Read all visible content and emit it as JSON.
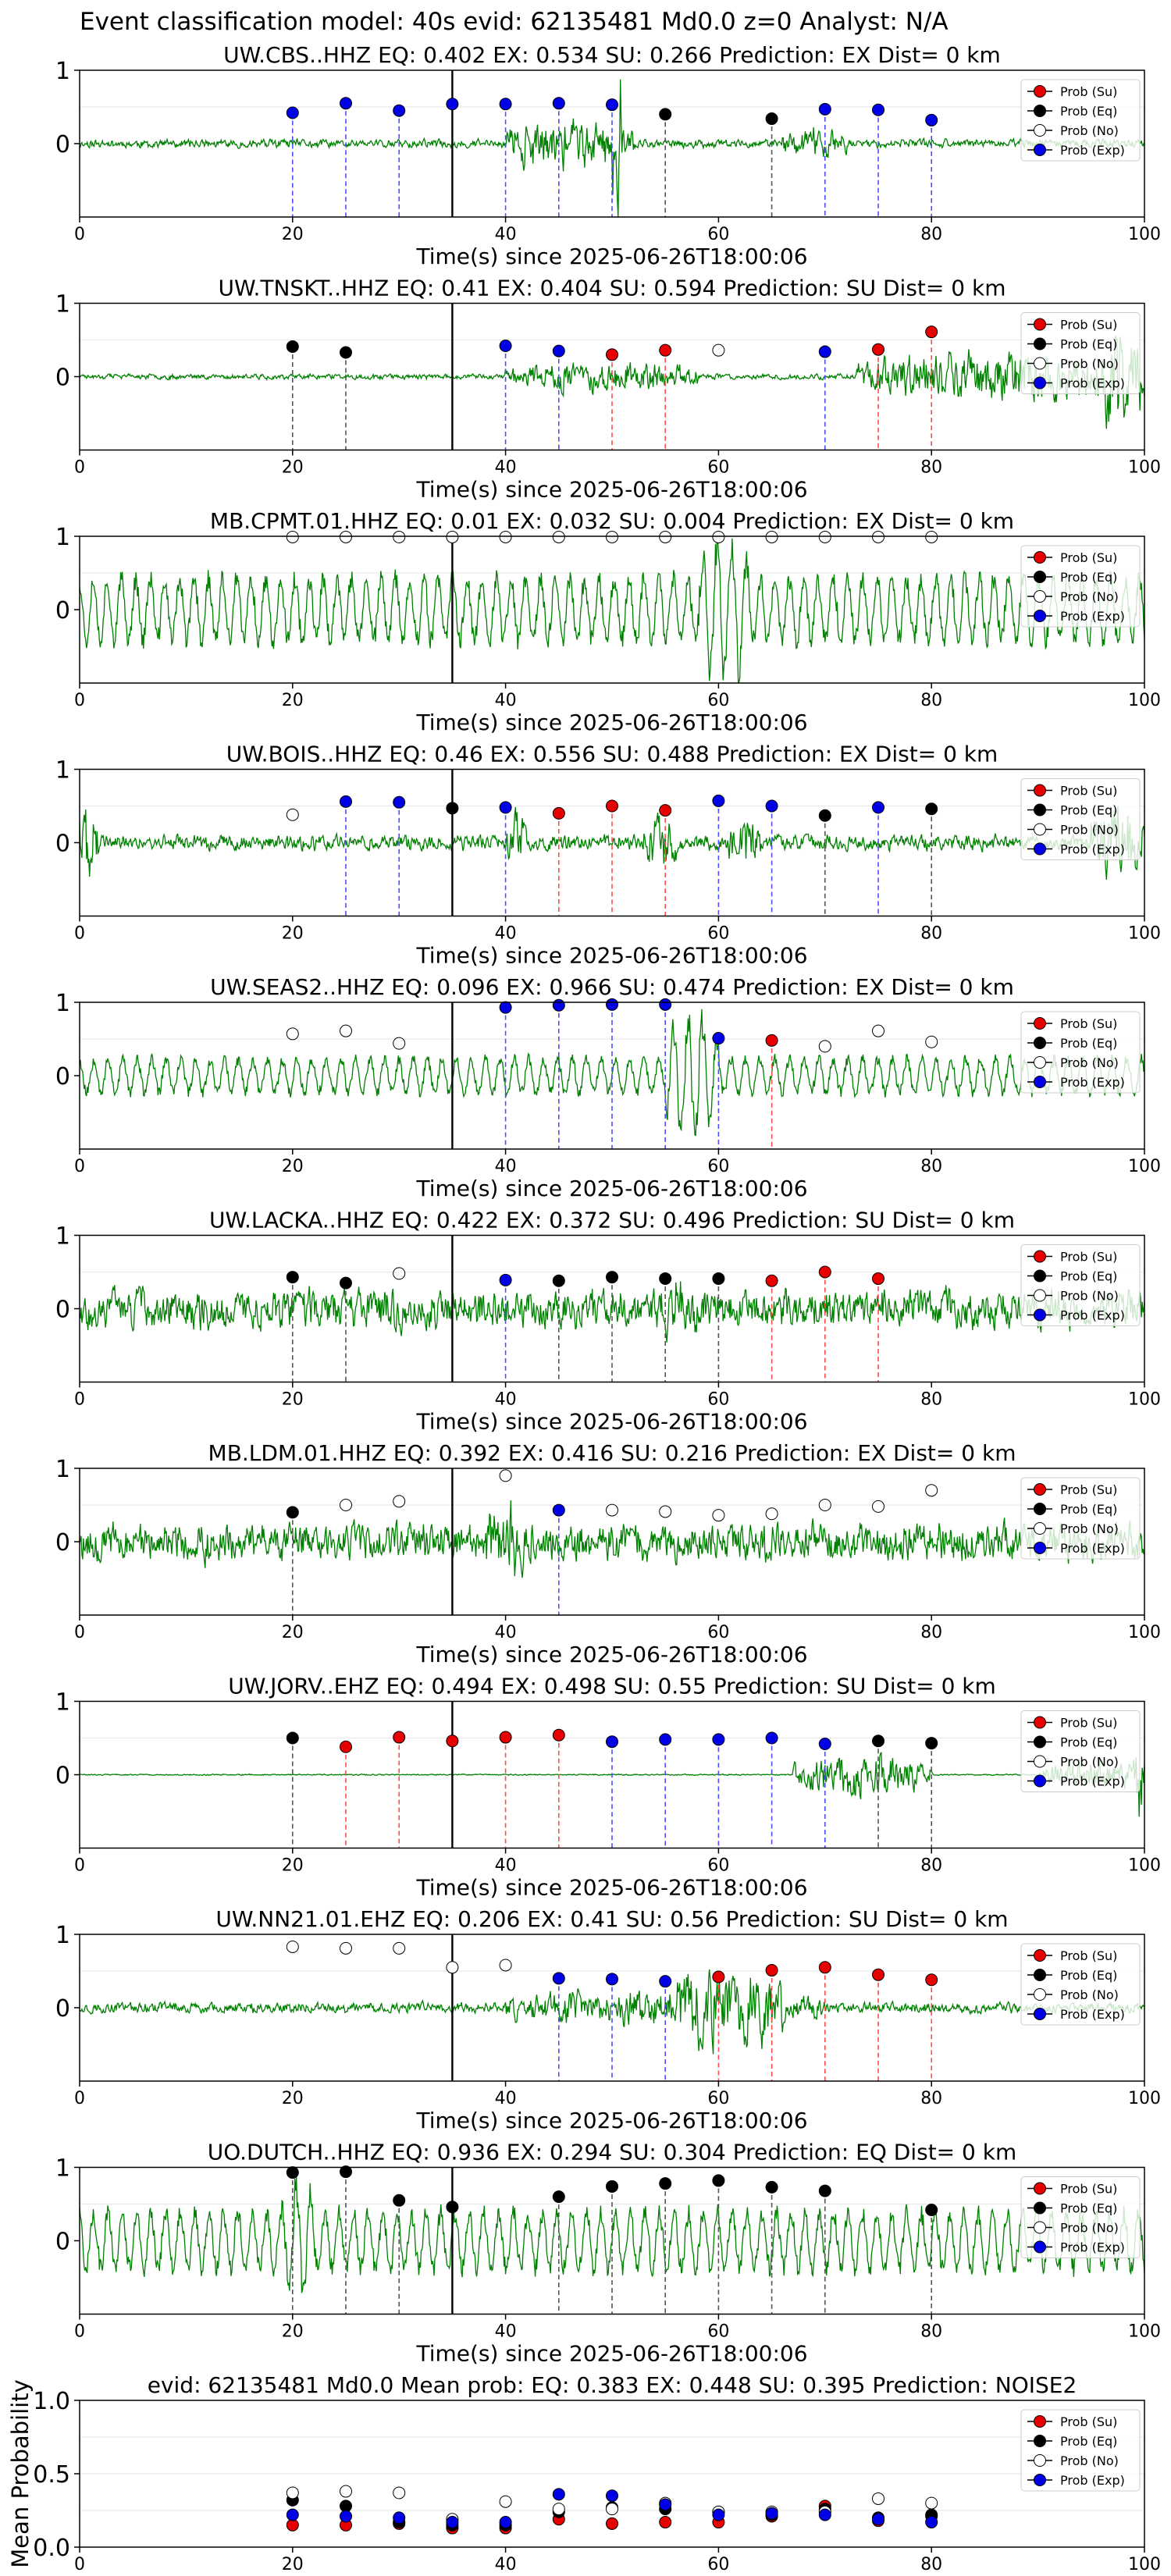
{
  "figure_title": "Event classification model: 40s evid: 62135481 Md0.0 z=0 Analyst: N/A",
  "xlabel": "Time(s) since 2025-06-26T18:00:06",
  "legend_labels": [
    "Prob (Su)",
    "Prob (Eq)",
    "Prob (No)",
    "Prob (Exp)"
  ],
  "colors": {
    "su": "#e60000",
    "eq": "#000000",
    "no": "#ffffff",
    "exp": "#0000e6",
    "waveform": "#008000",
    "su_line": "#ff4d4d",
    "eq_line": "#555555",
    "exp_line": "#4d4dff"
  },
  "chart_data": [
    {
      "type": "line",
      "title": "UW.CBS..HHZ   EQ: 0.402  EX: 0.534  SU: 0.266   Prediction: EX    Dist= 0 km",
      "xlim": [
        0,
        100
      ],
      "ylim": [
        -1,
        1
      ],
      "xticks": [
        0,
        20,
        40,
        60,
        80,
        100
      ],
      "yticks": [
        0,
        1
      ],
      "waveform": {
        "seed": 11,
        "amp": 0.1,
        "style": "noise",
        "bursts": [
          [
            40,
            52,
            0.5
          ],
          [
            50,
            51,
            1.5
          ],
          [
            66,
            72,
            0.25
          ]
        ]
      },
      "event_line_x": 35,
      "windows": [
        20,
        25,
        30,
        35,
        40,
        45,
        50,
        55,
        65,
        70,
        75,
        80
      ],
      "classes": [
        "exp",
        "exp",
        "exp",
        "exp",
        "exp",
        "exp",
        "exp",
        "eq",
        "eq",
        "exp",
        "exp",
        "exp"
      ],
      "probs": [
        0.42,
        0.55,
        0.45,
        0.54,
        0.54,
        0.55,
        0.53,
        0.4,
        0.34,
        0.47,
        0.46,
        0.32
      ]
    },
    {
      "type": "line",
      "title": "UW.TNSKT..HHZ   EQ: 0.41  EX: 0.404  SU: 0.594   Prediction: SU    Dist= 0 km",
      "xlim": [
        0,
        100
      ],
      "ylim": [
        -1,
        1
      ],
      "xticks": [
        0,
        20,
        40,
        60,
        80,
        100
      ],
      "yticks": [
        0,
        1
      ],
      "waveform": {
        "seed": 23,
        "amp": 0.06,
        "style": "noise",
        "bursts": [
          [
            40,
            58,
            0.3
          ],
          [
            73,
            100,
            0.55
          ],
          [
            96,
            100,
            0.9
          ]
        ]
      },
      "event_line_x": 35,
      "windows": [
        20,
        25,
        40,
        45,
        50,
        55,
        60,
        70,
        75,
        80
      ],
      "classes": [
        "eq",
        "eq",
        "exp",
        "exp",
        "su",
        "su",
        "no",
        "exp",
        "su",
        "su"
      ],
      "probs": [
        0.41,
        0.33,
        0.42,
        0.35,
        0.3,
        0.36,
        0.36,
        0.34,
        0.37,
        0.61
      ]
    },
    {
      "type": "line",
      "title": "MB.CPMT.01.HHZ   EQ: 0.01  EX: 0.032  SU: 0.004   Prediction: EX    Dist= 0 km",
      "xlim": [
        0,
        100
      ],
      "ylim": [
        -1,
        1
      ],
      "xticks": [
        0,
        20,
        40,
        60,
        80,
        100
      ],
      "yticks": [
        0,
        1
      ],
      "waveform": {
        "seed": 37,
        "amp": 0.55,
        "style": "wave",
        "bursts": [
          [
            58,
            63,
            0.6
          ]
        ]
      },
      "event_line_x": 35,
      "windows": [
        20,
        25,
        30,
        35,
        40,
        45,
        50,
        55,
        60,
        65,
        70,
        75,
        80
      ],
      "classes": [
        "no",
        "no",
        "no",
        "no",
        "no",
        "no",
        "no",
        "no",
        "no",
        "no",
        "no",
        "no",
        "no"
      ],
      "probs": [
        0.99,
        0.99,
        0.99,
        0.99,
        0.99,
        0.99,
        0.99,
        0.99,
        0.99,
        0.99,
        0.99,
        0.99,
        0.99
      ]
    },
    {
      "type": "line",
      "title": "UW.BOIS..HHZ   EQ: 0.46  EX: 0.556  SU: 0.488   Prediction: EX    Dist= 0 km",
      "xlim": [
        0,
        100
      ],
      "ylim": [
        -1,
        1
      ],
      "xticks": [
        0,
        20,
        40,
        60,
        80,
        100
      ],
      "yticks": [
        0,
        1
      ],
      "waveform": {
        "seed": 41,
        "amp": 0.18,
        "style": "noise",
        "bursts": [
          [
            0,
            2,
            0.7
          ],
          [
            40,
            42,
            0.5
          ],
          [
            53,
            56,
            0.5
          ],
          [
            61,
            64,
            0.4
          ],
          [
            95,
            100,
            0.8
          ]
        ]
      },
      "event_line_x": 35,
      "windows": [
        20,
        25,
        30,
        35,
        40,
        45,
        50,
        55,
        60,
        65,
        70,
        75,
        80
      ],
      "classes": [
        "no",
        "exp",
        "exp",
        "eq",
        "exp",
        "su",
        "su",
        "su",
        "exp",
        "exp",
        "eq",
        "exp",
        "eq"
      ],
      "probs": [
        0.38,
        0.56,
        0.55,
        0.47,
        0.48,
        0.4,
        0.5,
        0.44,
        0.57,
        0.5,
        0.37,
        0.48,
        0.46
      ]
    },
    {
      "type": "line",
      "title": "UW.SEAS2..HHZ   EQ: 0.096  EX: 0.966  SU: 0.474   Prediction: EX    Dist= 0 km",
      "xlim": [
        0,
        100
      ],
      "ylim": [
        -1,
        1
      ],
      "xticks": [
        0,
        20,
        40,
        60,
        80,
        100
      ],
      "yticks": [
        0,
        1
      ],
      "waveform": {
        "seed": 53,
        "amp": 0.3,
        "style": "wave",
        "bursts": [
          [
            55,
            60,
            0.7
          ]
        ]
      },
      "event_line_x": 35,
      "windows": [
        20,
        25,
        30,
        40,
        45,
        50,
        55,
        60,
        65,
        70,
        75,
        80
      ],
      "classes": [
        "no",
        "no",
        "no",
        "exp",
        "exp",
        "exp",
        "exp",
        "exp",
        "su",
        "no",
        "no",
        "no"
      ],
      "probs": [
        0.57,
        0.61,
        0.44,
        0.93,
        0.96,
        0.97,
        0.97,
        0.51,
        0.48,
        0.4,
        0.61,
        0.46
      ]
    },
    {
      "type": "line",
      "title": "UW.LACKA..HHZ   EQ: 0.422  EX: 0.372  SU: 0.496   Prediction: SU    Dist= 0 km",
      "xlim": [
        0,
        100
      ],
      "ylim": [
        -1,
        1
      ],
      "xticks": [
        0,
        20,
        40,
        60,
        80,
        100
      ],
      "yticks": [
        0,
        1
      ],
      "waveform": {
        "seed": 67,
        "amp": 0.45,
        "style": "noise",
        "bursts": [
          [
            55,
            58,
            0.3
          ]
        ]
      },
      "event_line_x": 35,
      "windows": [
        20,
        25,
        30,
        40,
        45,
        50,
        55,
        60,
        65,
        70,
        75
      ],
      "classes": [
        "eq",
        "eq",
        "no",
        "exp",
        "eq",
        "eq",
        "eq",
        "eq",
        "su",
        "su",
        "su"
      ],
      "probs": [
        0.43,
        0.35,
        0.48,
        0.39,
        0.38,
        0.43,
        0.41,
        0.41,
        0.38,
        0.5,
        0.41
      ]
    },
    {
      "type": "line",
      "title": "MB.LDM.01.HHZ   EQ: 0.392  EX: 0.416  SU: 0.216   Prediction: EX    Dist= 0 km",
      "xlim": [
        0,
        100
      ],
      "ylim": [
        -1,
        1
      ],
      "xticks": [
        0,
        20,
        40,
        60,
        80,
        100
      ],
      "yticks": [
        0,
        1
      ],
      "waveform": {
        "seed": 79,
        "amp": 0.45,
        "style": "noise",
        "bursts": [
          [
            38,
            42,
            0.4
          ]
        ]
      },
      "event_line_x": 35,
      "windows": [
        20,
        25,
        30,
        40,
        45,
        50,
        55,
        60,
        65,
        70,
        75,
        80
      ],
      "classes": [
        "eq",
        "no",
        "no",
        "no",
        "exp",
        "no",
        "no",
        "no",
        "no",
        "no",
        "no",
        "no"
      ],
      "probs": [
        0.4,
        0.5,
        0.55,
        0.9,
        0.43,
        0.43,
        0.41,
        0.36,
        0.38,
        0.5,
        0.48,
        0.7
      ]
    },
    {
      "type": "line",
      "title": "UW.JORV..EHZ   EQ: 0.494  EX: 0.498  SU: 0.55   Prediction: SU    Dist= 0 km",
      "xlim": [
        0,
        100
      ],
      "ylim": [
        -1,
        1
      ],
      "xticks": [
        0,
        20,
        40,
        60,
        80,
        100
      ],
      "yticks": [
        0,
        1
      ],
      "waveform": {
        "seed": 83,
        "amp": 0.015,
        "style": "noise",
        "bursts": [
          [
            67,
            80,
            0.5
          ],
          [
            90,
            100,
            0.35
          ],
          [
            99,
            100,
            0.9
          ]
        ]
      },
      "event_line_x": 35,
      "windows": [
        20,
        25,
        30,
        35,
        40,
        45,
        50,
        55,
        60,
        65,
        70,
        75,
        80
      ],
      "classes": [
        "eq",
        "su",
        "su",
        "su",
        "su",
        "su",
        "exp",
        "exp",
        "exp",
        "exp",
        "exp",
        "eq",
        "eq"
      ],
      "probs": [
        0.5,
        0.38,
        0.51,
        0.46,
        0.51,
        0.54,
        0.45,
        0.48,
        0.48,
        0.5,
        0.42,
        0.46,
        0.43
      ]
    },
    {
      "type": "line",
      "title": "UW.NN21.01.EHZ   EQ: 0.206  EX: 0.41  SU: 0.56   Prediction: SU    Dist= 0 km",
      "xlim": [
        0,
        100
      ],
      "ylim": [
        -1,
        1
      ],
      "xticks": [
        0,
        20,
        40,
        60,
        80,
        100
      ],
      "yticks": [
        0,
        1
      ],
      "waveform": {
        "seed": 97,
        "amp": 0.12,
        "style": "noise",
        "bursts": [
          [
            40,
            70,
            0.3
          ],
          [
            56,
            66,
            0.6
          ]
        ]
      },
      "event_line_x": 35,
      "windows": [
        20,
        25,
        30,
        35,
        40,
        45,
        50,
        55,
        60,
        65,
        70,
        75,
        80
      ],
      "classes": [
        "no",
        "no",
        "no",
        "no",
        "no",
        "exp",
        "exp",
        "exp",
        "su",
        "su",
        "su",
        "su",
        "su"
      ],
      "probs": [
        0.83,
        0.81,
        0.81,
        0.55,
        0.58,
        0.4,
        0.39,
        0.36,
        0.42,
        0.51,
        0.55,
        0.45,
        0.38
      ]
    },
    {
      "type": "line",
      "title": "UO.DUTCH..HHZ   EQ: 0.936  EX: 0.294  SU: 0.304   Prediction: EQ    Dist= 0 km",
      "xlim": [
        0,
        100
      ],
      "ylim": [
        -1,
        1
      ],
      "xticks": [
        0,
        20,
        40,
        60,
        80,
        100
      ],
      "yticks": [
        0,
        1
      ],
      "waveform": {
        "seed": 101,
        "amp": 0.5,
        "style": "wave",
        "bursts": [
          [
            19,
            22,
            0.5
          ]
        ]
      },
      "event_line_x": 35,
      "windows": [
        20,
        25,
        30,
        35,
        45,
        50,
        55,
        60,
        65,
        70,
        80
      ],
      "classes": [
        "eq",
        "eq",
        "eq",
        "eq",
        "eq",
        "eq",
        "eq",
        "eq",
        "eq",
        "eq",
        "eq"
      ],
      "probs": [
        0.93,
        0.94,
        0.55,
        0.46,
        0.6,
        0.74,
        0.78,
        0.82,
        0.73,
        0.68,
        0.42
      ]
    },
    {
      "type": "scatter",
      "title": "evid: 62135481  Md0.0   Mean prob:   EQ: 0.383  EX: 0.448  SU: 0.395   Prediction: NOISE2",
      "ylabel": "Mean Probability",
      "xlim": [
        0,
        100
      ],
      "ylim": [
        0,
        1
      ],
      "xticks": [
        0,
        20,
        40,
        60,
        80,
        100
      ],
      "yticks": [
        0.0,
        0.5,
        1.0
      ],
      "ytick_labels": [
        "0.0",
        "0.5",
        "1.0"
      ],
      "x": [
        20,
        25,
        30,
        35,
        40,
        45,
        50,
        55,
        60,
        65,
        70,
        75,
        80
      ],
      "series": [
        {
          "name": "Prob (Su)",
          "key": "su",
          "values": [
            0.15,
            0.15,
            0.16,
            0.13,
            0.13,
            0.19,
            0.16,
            0.17,
            0.17,
            0.21,
            0.28,
            0.18,
            0.21
          ]
        },
        {
          "name": "Prob (Eq)",
          "key": "eq",
          "values": [
            0.32,
            0.28,
            0.17,
            0.15,
            0.15,
            0.24,
            0.27,
            0.26,
            0.24,
            0.22,
            0.26,
            0.2,
            0.22
          ]
        },
        {
          "name": "Prob (No)",
          "key": "no",
          "values": [
            0.37,
            0.38,
            0.37,
            0.19,
            0.31,
            0.26,
            0.26,
            0.3,
            0.24,
            0.24,
            0.24,
            0.33,
            0.3
          ]
        },
        {
          "name": "Prob (Exp)",
          "key": "exp",
          "values": [
            0.22,
            0.21,
            0.2,
            0.17,
            0.17,
            0.36,
            0.35,
            0.29,
            0.22,
            0.23,
            0.22,
            0.19,
            0.17
          ]
        }
      ]
    }
  ]
}
